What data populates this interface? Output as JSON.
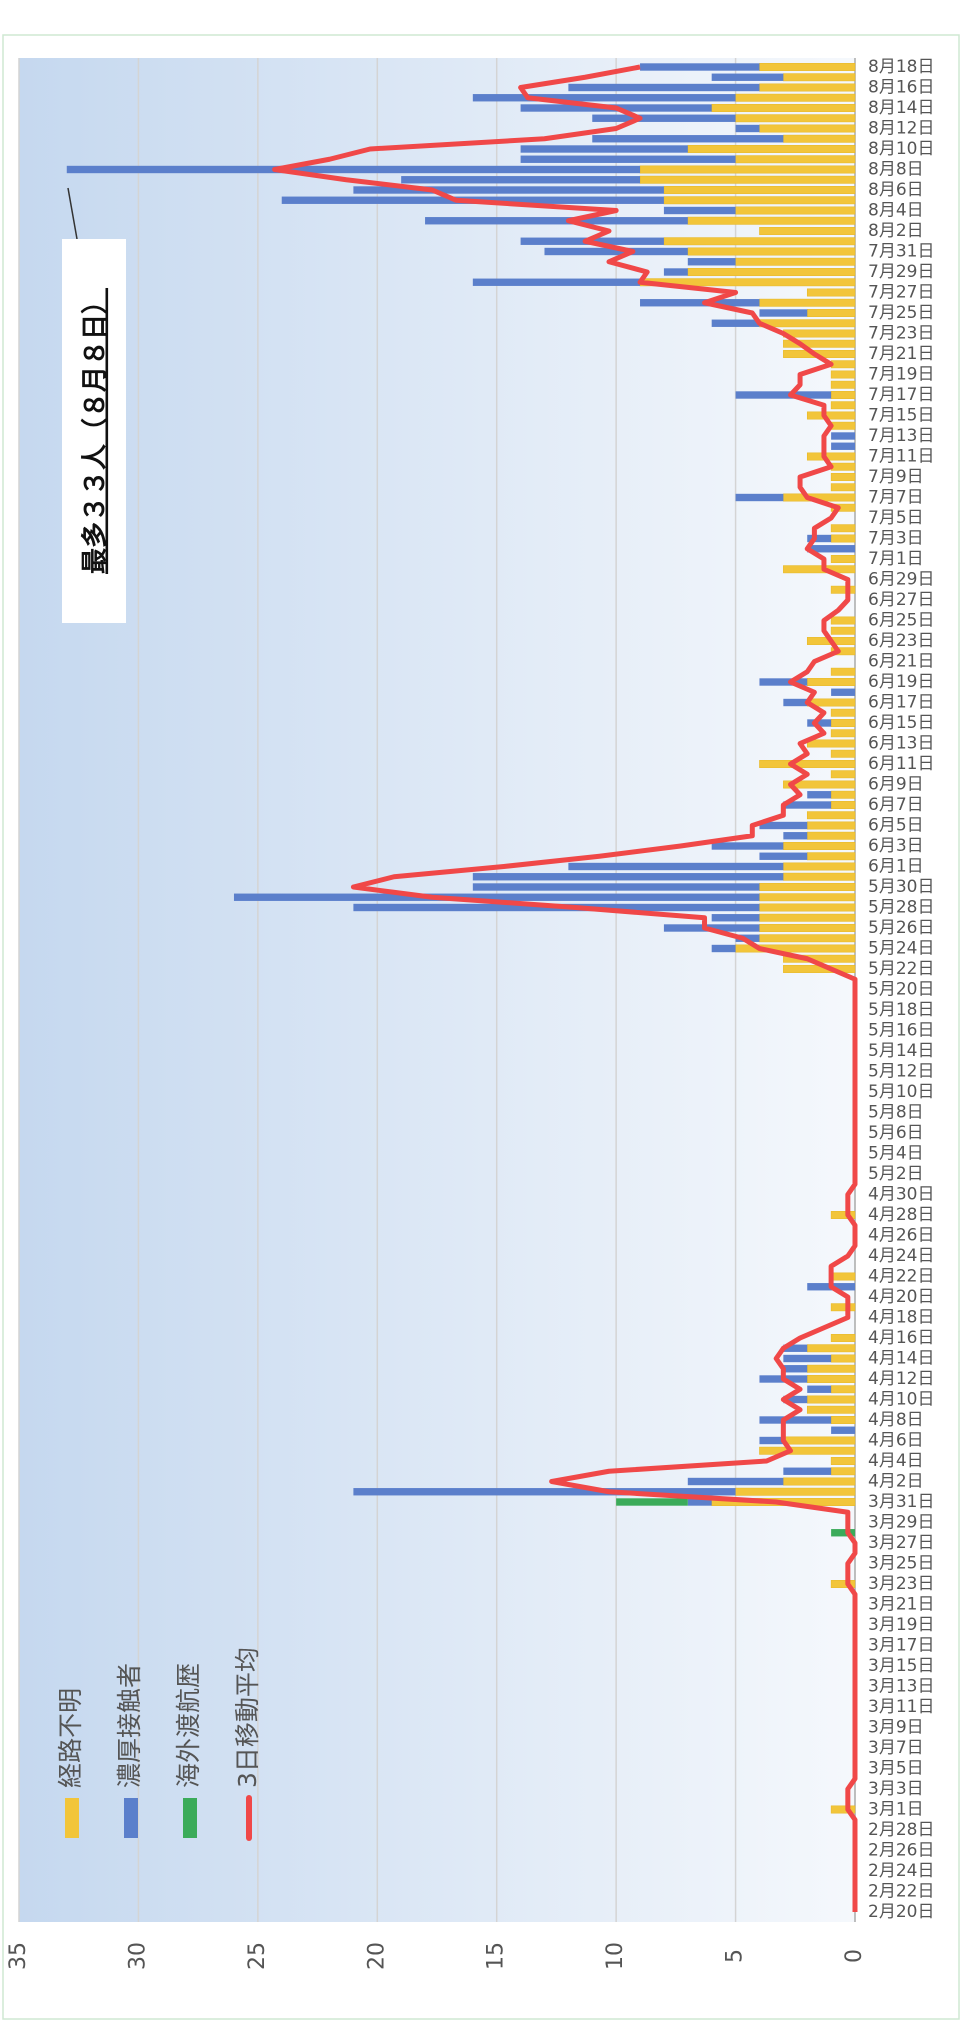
{
  "chart_data": {
    "type": "bar",
    "stacked": true,
    "orientation": "horizontal",
    "annotation": "最多３３人（８月８日）",
    "categories": [
      "2月20日",
      null,
      "2月22日",
      null,
      "2月24日",
      null,
      "2月26日",
      null,
      "2月28日",
      null,
      "3月1日",
      null,
      "3月3日",
      null,
      "3月5日",
      null,
      "3月7日",
      null,
      "3月9日",
      null,
      "3月11日",
      null,
      "3月13日",
      null,
      "3月15日",
      null,
      "3月17日",
      null,
      "3月19日",
      null,
      "3月21日",
      null,
      "3月23日",
      null,
      "3月25日",
      null,
      "3月27日",
      null,
      "3月29日",
      null,
      "3月31日",
      null,
      "4月2日",
      null,
      "4月4日",
      null,
      "4月6日",
      null,
      "4月8日",
      null,
      "4月10日",
      null,
      "4月12日",
      null,
      "4月14日",
      null,
      "4月16日",
      null,
      "4月18日",
      null,
      "4月20日",
      null,
      "4月22日",
      null,
      "4月24日",
      null,
      "4月26日",
      null,
      "4月28日",
      null,
      "4月30日",
      null,
      "5月2日",
      null,
      "5月4日",
      null,
      "5月6日",
      null,
      "5月8日",
      null,
      "5月10日",
      null,
      "5月12日",
      null,
      "5月14日",
      null,
      "5月16日",
      null,
      "5月18日",
      null,
      "5月20日",
      null,
      "5月22日",
      null,
      "5月24日",
      null,
      "5月26日",
      null,
      "5月28日",
      null,
      "5月30日",
      null,
      "6月1日",
      null,
      "6月3日",
      null,
      "6月5日",
      null,
      "6月7日",
      null,
      "6月9日",
      null,
      "6月11日",
      null,
      "6月13日",
      null,
      "6月15日",
      null,
      "6月17日",
      null,
      "6月19日",
      null,
      "6月21日",
      null,
      "6月23日",
      null,
      "6月25日",
      null,
      "6月27日",
      null,
      "6月29日",
      null,
      "7月1日",
      null,
      "7月3日",
      null,
      "7月5日",
      null,
      "7月7日",
      null,
      "7月9日",
      null,
      "7月11日",
      null,
      "7月13日",
      null,
      "7月15日",
      null,
      "7月17日",
      null,
      "7月19日",
      null,
      "7月21日",
      null,
      "7月23日",
      null,
      "7月25日",
      null,
      "7月27日",
      null,
      "7月29日",
      null,
      "7月31日",
      null,
      "8月2日",
      null,
      "8月4日",
      null,
      "8月6日",
      null,
      "8月8日",
      null,
      "8月10日",
      null,
      "8月12日",
      null,
      "8月14日",
      null,
      "8月16日",
      null,
      "8月18日"
    ],
    "series": [
      {
        "name": "経路不明",
        "color": "#f2c53a",
        "values": [
          0,
          0,
          0,
          0,
          0,
          0,
          0,
          0,
          0,
          0,
          1,
          0,
          0,
          0,
          0,
          0,
          0,
          0,
          0,
          0,
          0,
          0,
          0,
          0,
          0,
          0,
          0,
          0,
          0,
          0,
          0,
          0,
          1,
          0,
          0,
          0,
          0,
          0,
          0,
          0,
          6,
          5,
          3,
          1,
          1,
          4,
          3,
          0,
          1,
          2,
          2,
          1,
          2,
          2,
          1,
          2,
          1,
          0,
          0,
          1,
          0,
          0,
          1,
          0,
          0,
          0,
          0,
          0,
          1,
          0,
          0,
          0,
          0,
          0,
          0,
          0,
          0,
          0,
          0,
          0,
          0,
          0,
          0,
          0,
          0,
          0,
          0,
          0,
          0,
          0,
          0,
          0,
          3,
          3,
          5,
          4,
          4,
          4,
          4,
          4,
          4,
          3,
          3,
          2,
          3,
          2,
          2,
          2,
          1,
          1,
          3,
          1,
          4,
          1,
          2,
          1,
          1,
          1,
          2,
          0,
          2,
          1,
          0,
          1,
          2,
          1,
          1,
          0,
          0,
          1,
          0,
          3,
          1,
          0,
          1,
          1,
          0,
          1,
          3,
          1,
          1,
          1,
          2,
          0,
          0,
          1,
          2,
          1,
          1,
          1,
          1,
          1,
          3,
          3,
          3,
          4,
          2,
          4,
          2,
          9,
          7,
          5,
          7,
          8,
          4,
          7,
          5,
          8,
          8,
          9,
          9,
          5,
          7,
          3,
          4,
          5,
          6,
          5,
          4,
          3,
          4
        ]
      },
      {
        "name": "濃厚接触者",
        "color": "#5b7fcb",
        "values": [
          0,
          0,
          0,
          0,
          0,
          0,
          0,
          0,
          0,
          0,
          0,
          0,
          0,
          0,
          0,
          0,
          0,
          0,
          0,
          0,
          0,
          0,
          0,
          0,
          0,
          0,
          0,
          0,
          0,
          0,
          0,
          0,
          0,
          0,
          0,
          0,
          0,
          0,
          0,
          0,
          1,
          16,
          4,
          2,
          0,
          0,
          1,
          1,
          3,
          0,
          1,
          1,
          2,
          1,
          2,
          1,
          0,
          0,
          0,
          0,
          0,
          2,
          0,
          0,
          0,
          0,
          0,
          0,
          0,
          0,
          0,
          0,
          0,
          0,
          0,
          0,
          0,
          0,
          0,
          0,
          0,
          0,
          0,
          0,
          0,
          0,
          0,
          0,
          0,
          0,
          0,
          0,
          0,
          0,
          1,
          1,
          4,
          2,
          17,
          22,
          12,
          13,
          9,
          2,
          3,
          1,
          2,
          0,
          2,
          1,
          0,
          0,
          0,
          0,
          0,
          0,
          1,
          0,
          1,
          1,
          2,
          0,
          0,
          0,
          0,
          0,
          0,
          0,
          0,
          0,
          0,
          0,
          0,
          2,
          1,
          0,
          0,
          0,
          2,
          0,
          0,
          0,
          0,
          1,
          1,
          0,
          0,
          0,
          4,
          0,
          0,
          0,
          0,
          0,
          0,
          2,
          2,
          5,
          0,
          7,
          1,
          2,
          6,
          6,
          0,
          11,
          3,
          16,
          13,
          10,
          24,
          9,
          7,
          8,
          1,
          6,
          8,
          11,
          8,
          3,
          5
        ]
      },
      {
        "name": "海外渡航歴",
        "color": "#3bab5a",
        "values": [
          0,
          0,
          0,
          0,
          0,
          0,
          0,
          0,
          0,
          0,
          0,
          0,
          0,
          0,
          0,
          0,
          0,
          0,
          0,
          0,
          0,
          0,
          0,
          0,
          0,
          0,
          0,
          0,
          0,
          0,
          0,
          0,
          0,
          0,
          0,
          0,
          0,
          1,
          0,
          0,
          3,
          0,
          0,
          0,
          0,
          0,
          0,
          0,
          0,
          0,
          0,
          0,
          0,
          0,
          0,
          0,
          0,
          0,
          0,
          0,
          0,
          0,
          0,
          0,
          0,
          0,
          0,
          0,
          0,
          0,
          0,
          0,
          0,
          0,
          0,
          0,
          0,
          0,
          0,
          0,
          0,
          0,
          0,
          0,
          0,
          0,
          0,
          0,
          0,
          0,
          0,
          0,
          0,
          0,
          0,
          0,
          0,
          0,
          0,
          0,
          0,
          0,
          0,
          0,
          0,
          0,
          0,
          0,
          0,
          0,
          0,
          0,
          0,
          0,
          0,
          0,
          0,
          0,
          0,
          0,
          0,
          0,
          0,
          0,
          0,
          0,
          0,
          0,
          0,
          0,
          0,
          0,
          0,
          0,
          0,
          0,
          0,
          0,
          0,
          0,
          0,
          0,
          0,
          0,
          0,
          0,
          0,
          0,
          0,
          0,
          0,
          0,
          0,
          0,
          0,
          0,
          0,
          0,
          0,
          0,
          0,
          0,
          0,
          0,
          0,
          0,
          0,
          0,
          0,
          0,
          0,
          0,
          0,
          0,
          0,
          0,
          0,
          0,
          0,
          0,
          0
        ]
      }
    ],
    "line": {
      "name": "3日移動平均",
      "color": "#f04848",
      "values": [
        0,
        0,
        0,
        0,
        0,
        0,
        0,
        0,
        0,
        0,
        0.3,
        0.3,
        0.3,
        0,
        0,
        0,
        0,
        0,
        0,
        0,
        0,
        0,
        0,
        0,
        0,
        0,
        0,
        0,
        0,
        0,
        0,
        0,
        0.3,
        0.3,
        0.3,
        0,
        0,
        0.3,
        0.3,
        0.3,
        3.3,
        10.3,
        12.7,
        10.3,
        3.7,
        2.7,
        3,
        3,
        3,
        2.3,
        3,
        2.3,
        3,
        3,
        3.3,
        3,
        2.3,
        1.3,
        0.3,
        0.3,
        0.3,
        1,
        1,
        1,
        0.3,
        0,
        0,
        0,
        0.3,
        0.3,
        0.3,
        0,
        0,
        0,
        0,
        0,
        0,
        0,
        0,
        0,
        0,
        0,
        0,
        0,
        0,
        0,
        0,
        0,
        0,
        0,
        0,
        0,
        1,
        2,
        4,
        4.7,
        6.3,
        6.3,
        11.7,
        17.7,
        21,
        19.3,
        14.7,
        10.7,
        7.3,
        4.3,
        4.3,
        3,
        3,
        2.3,
        2.7,
        2,
        2.7,
        2,
        2.3,
        1.3,
        1.7,
        1.3,
        2,
        1.7,
        2.7,
        2,
        1.7,
        0.7,
        1,
        1.3,
        1.3,
        0.7,
        0.3,
        0.3,
        0.3,
        1.3,
        1.3,
        2,
        1.7,
        1.7,
        1,
        0.7,
        2,
        2.3,
        2.3,
        1,
        1.3,
        1.3,
        1.3,
        1,
        1.3,
        1.3,
        2.7,
        2.3,
        2.3,
        1,
        1.7,
        2.3,
        3,
        4,
        4.3,
        6.3,
        5,
        9,
        8.7,
        10.3,
        9.3,
        11.3,
        10.3,
        12,
        10,
        16.7,
        17.7,
        21.3,
        24.3,
        22,
        20.3,
        13,
        10,
        9,
        10,
        13.7,
        14,
        11.3,
        9
      ]
    },
    "ylim": [
      0,
      35
    ],
    "yticks": [
      0,
      5,
      10,
      15,
      20,
      25,
      30,
      35
    ],
    "grid": true
  }
}
